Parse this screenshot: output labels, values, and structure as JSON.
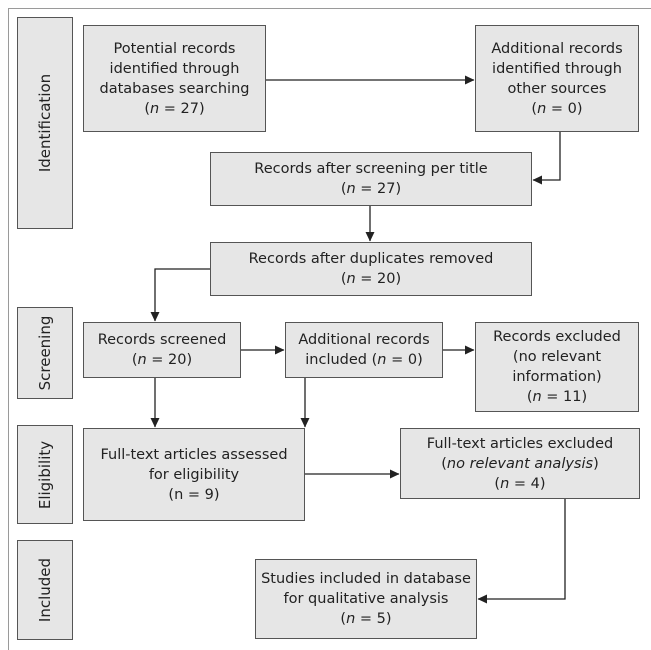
{
  "stages": {
    "identification": "Identification",
    "screening": "Screening",
    "eligibility": "Eligibility",
    "included": "Included"
  },
  "n_symbol": "n",
  "boxes": {
    "db_records": {
      "lines": [
        "Potential records",
        "identified through",
        "databases searching"
      ],
      "n_text": " = 27"
    },
    "other_records": {
      "lines": [
        "Additional records",
        "identified through",
        "other sources"
      ],
      "n_text": " = 0"
    },
    "after_title": {
      "lines": [
        "Records after screening per title"
      ],
      "n_text": " = 27"
    },
    "dup_removed": {
      "lines": [
        "Records after duplicates removed"
      ],
      "n_text": " = 20"
    },
    "screened": {
      "lines": [
        "Records screened"
      ],
      "n_text": " = 20"
    },
    "additional_included": {
      "lines": [
        "Additional records"
      ],
      "tail": "included (",
      "n_text": " = 0)"
    },
    "excluded": {
      "lines": [
        "Records excluded",
        "(no relevant",
        "information)"
      ],
      "n_text": " = 11"
    },
    "fulltext_assessed": {
      "lines": [
        "Full-text articles assessed",
        "for eligibility"
      ],
      "n_text": "n = 9"
    },
    "fulltext_excluded": {
      "line1": "Full-text articles excluded",
      "reason": "no relevant analysis",
      "n_text": " = 4"
    },
    "studies_included": {
      "lines": [
        "Studies included in database",
        "for qualitative analysis"
      ],
      "n_text": " = 5"
    }
  },
  "colors": {
    "box_fill": "#e6e6e6",
    "border": "#555555",
    "arrow": "#222222"
  }
}
